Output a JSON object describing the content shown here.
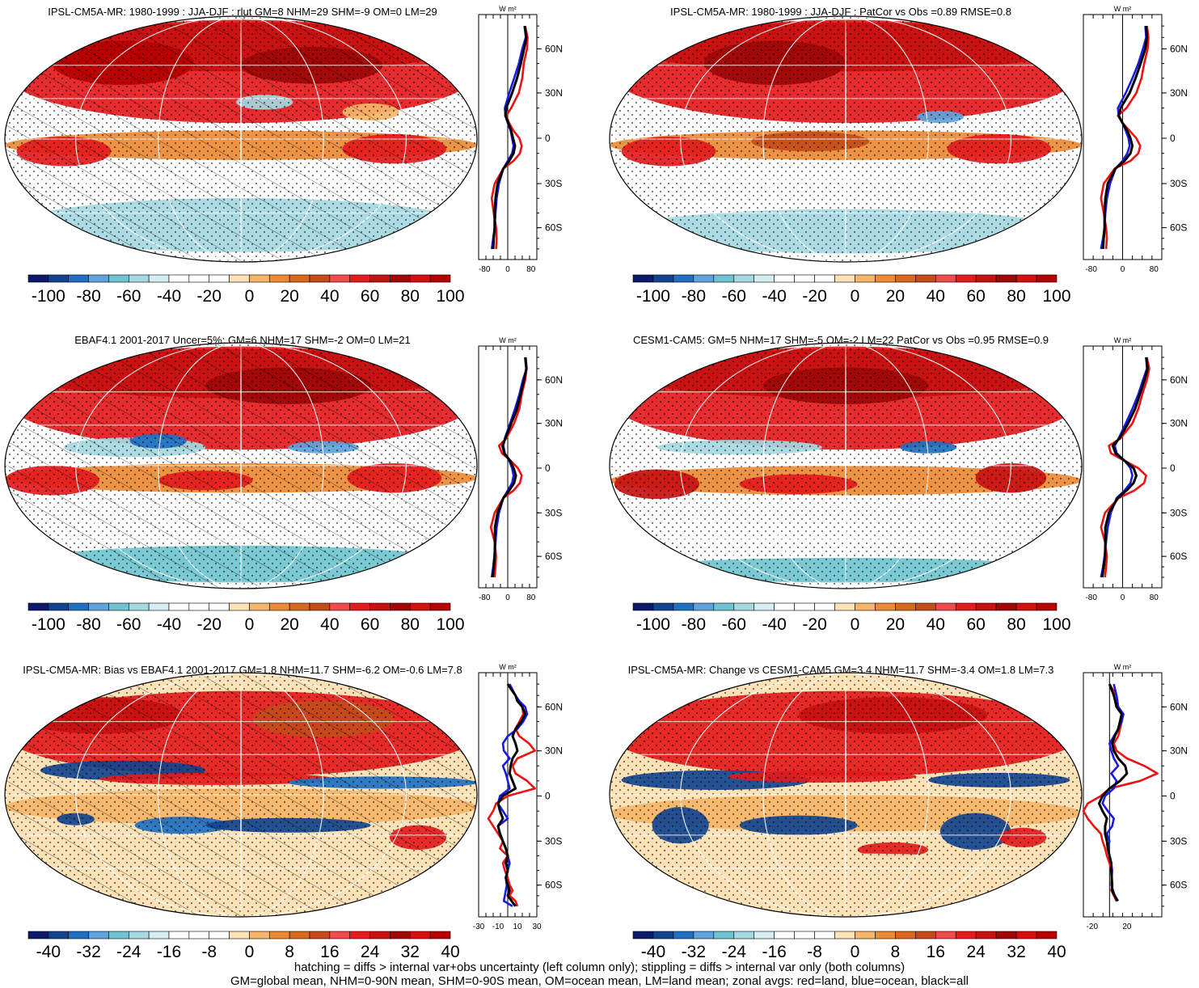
{
  "chart_data": [
    {
      "type": "map",
      "title": "IPSL-CM5A-MR: 1980-1999 : JJA-DJF : rlut GM=8 NHM=29 SHM=-9 OM=0 LM=29",
      "colorbar_ticks": [
        "-100",
        "-80",
        "-60",
        "-40",
        "-20",
        "0",
        "20",
        "40",
        "60",
        "80",
        "100"
      ],
      "colorbar_range": [
        -100,
        100
      ],
      "zonal": {
        "unit_label": "W m²",
        "lat_ticks": [
          "60N",
          "30N",
          "0",
          "30S",
          "60S"
        ],
        "x_ticks": [
          "-80",
          "0",
          "80"
        ],
        "xlim": [
          -100,
          100
        ],
        "lat": [
          80,
          70,
          60,
          50,
          40,
          30,
          20,
          15,
          10,
          5,
          0,
          -5,
          -10,
          -15,
          -20,
          -30,
          -40,
          -50,
          -60,
          -70,
          -80
        ],
        "series": [
          {
            "name": "land",
            "color": "#ee1111",
            "values": [
              60,
              68,
              66,
              55,
              50,
              38,
              12,
              -5,
              5,
              20,
              40,
              48,
              42,
              20,
              -15,
              -45,
              -55,
              -48,
              -40,
              -38,
              -40
            ]
          },
          {
            "name": "ocean",
            "color": "#1a1ae6",
            "values": [
              58,
              62,
              50,
              38,
              22,
              5,
              -10,
              -8,
              0,
              10,
              15,
              20,
              15,
              0,
              -15,
              -30,
              -38,
              -42,
              -45,
              -50,
              -55
            ]
          },
          {
            "name": "all",
            "color": "#000000",
            "values": [
              58,
              64,
              56,
              45,
              32,
              15,
              -5,
              -8,
              2,
              12,
              18,
              25,
              20,
              5,
              -15,
              -35,
              -42,
              -45,
              -45,
              -48,
              -50
            ]
          }
        ]
      }
    },
    {
      "type": "map",
      "title": "IPSL-CM5A-MR: 1980-1999 : JJA-DJF : PatCor vs Obs =0.89 RMSE=0.8",
      "colorbar_ticks": [
        "-100",
        "-80",
        "-60",
        "-40",
        "-20",
        "0",
        "20",
        "40",
        "60",
        "80",
        "100"
      ],
      "colorbar_range": [
        -100,
        100
      ],
      "zonal": {
        "unit_label": "W m²",
        "lat_ticks": [
          "60N",
          "30N",
          "0",
          "30S",
          "60S"
        ],
        "x_ticks": [
          "-80",
          "0",
          "80"
        ],
        "xlim": [
          -100,
          100
        ],
        "lat": [
          80,
          70,
          60,
          50,
          40,
          30,
          20,
          15,
          10,
          5,
          0,
          -5,
          -10,
          -15,
          -20,
          -30,
          -40,
          -50,
          -60,
          -70,
          -80
        ],
        "series": [
          {
            "name": "land",
            "color": "#ee1111",
            "values": [
              62,
              66,
              64,
              55,
              48,
              35,
              10,
              -12,
              0,
              18,
              35,
              45,
              40,
              20,
              -20,
              -48,
              -55,
              -48,
              -42,
              -40,
              -42
            ]
          },
          {
            "name": "ocean",
            "color": "#1a1ae6",
            "values": [
              58,
              60,
              52,
              40,
              25,
              8,
              -12,
              -10,
              0,
              8,
              15,
              18,
              12,
              0,
              -18,
              -32,
              -40,
              -44,
              -46,
              -50,
              -55
            ]
          },
          {
            "name": "all",
            "color": "#000000",
            "values": [
              60,
              62,
              58,
              46,
              33,
              18,
              -5,
              -10,
              0,
              12,
              20,
              25,
              20,
              5,
              -18,
              -38,
              -44,
              -46,
              -46,
              -48,
              -50
            ]
          }
        ]
      }
    },
    {
      "type": "map",
      "title": "EBAF4.1 2001-2017 Uncer=5%: GM=6 NHM=17 SHM=-2 OM=0 LM=21",
      "colorbar_ticks": [
        "-100",
        "-80",
        "-60",
        "-40",
        "-20",
        "0",
        "20",
        "40",
        "60",
        "80",
        "100"
      ],
      "colorbar_range": [
        -100,
        100
      ],
      "zonal": {
        "unit_label": "W m²",
        "lat_ticks": [
          "60N",
          "30N",
          "0",
          "30S",
          "60S"
        ],
        "x_ticks": [
          "-80",
          "0",
          "80"
        ],
        "xlim": [
          -100,
          100
        ],
        "lat": [
          80,
          70,
          60,
          50,
          40,
          30,
          20,
          15,
          10,
          5,
          0,
          -5,
          -10,
          -15,
          -20,
          -30,
          -40,
          -50,
          -60,
          -70,
          -80
        ],
        "series": [
          {
            "name": "land",
            "color": "#ee1111",
            "values": [
              60,
              65,
              60,
              48,
              40,
              22,
              -5,
              -30,
              -20,
              10,
              35,
              48,
              42,
              20,
              -15,
              -45,
              -58,
              -45,
              -40,
              -42,
              -45
            ]
          },
          {
            "name": "ocean",
            "color": "#1a1ae6",
            "values": [
              62,
              65,
              52,
              40,
              25,
              8,
              -10,
              -15,
              -10,
              5,
              15,
              20,
              15,
              0,
              -15,
              -30,
              -38,
              -42,
              -46,
              -50,
              -55
            ]
          },
          {
            "name": "all",
            "color": "#000000",
            "values": [
              60,
              64,
              56,
              44,
              32,
              12,
              -8,
              -18,
              -12,
              8,
              20,
              28,
              22,
              5,
              -15,
              -35,
              -44,
              -44,
              -45,
              -48,
              -52
            ]
          }
        ]
      }
    },
    {
      "type": "map",
      "title": "CESM1-CAM5: GM=5 NHM=17 SHM=-5 OM=-2 LM=22 PatCor vs Obs =0.95 RMSE=0.9",
      "colorbar_ticks": [
        "-100",
        "-80",
        "-60",
        "-40",
        "-20",
        "0",
        "20",
        "40",
        "60",
        "80",
        "100"
      ],
      "colorbar_range": [
        -100,
        100
      ],
      "zonal": {
        "unit_label": "W m²",
        "lat_ticks": [
          "60N",
          "30N",
          "0",
          "30S",
          "60S"
        ],
        "x_ticks": [
          "-80",
          "0",
          "80"
        ],
        "xlim": [
          -100,
          100
        ],
        "lat": [
          80,
          70,
          60,
          50,
          40,
          30,
          20,
          15,
          10,
          5,
          0,
          -5,
          -10,
          -15,
          -20,
          -30,
          -40,
          -50,
          -60,
          -70,
          -80
        ],
        "series": [
          {
            "name": "land",
            "color": "#ee1111",
            "values": [
              62,
              68,
              62,
              50,
              40,
              25,
              -5,
              -35,
              -30,
              5,
              40,
              60,
              55,
              30,
              -10,
              -45,
              -55,
              -45,
              -40,
              -42,
              -45
            ]
          },
          {
            "name": "ocean",
            "color": "#1a1ae6",
            "values": [
              60,
              62,
              52,
              40,
              25,
              8,
              -10,
              -20,
              -15,
              5,
              20,
              25,
              20,
              5,
              -15,
              -30,
              -38,
              -42,
              -46,
              -50,
              -55
            ]
          },
          {
            "name": "all",
            "color": "#000000",
            "values": [
              60,
              64,
              56,
              44,
              32,
              14,
              -8,
              -25,
              -18,
              5,
              28,
              35,
              28,
              10,
              -12,
              -35,
              -44,
              -44,
              -45,
              -48,
              -52
            ]
          }
        ]
      }
    },
    {
      "type": "map",
      "title": "IPSL-CM5A-MR: Bias vs EBAF4.1 2001-2017 GM=1.8 NHM=11.7 SHM=-6.2 OM=-0.6 LM=7.8",
      "colorbar_ticks": [
        "-40",
        "-32",
        "-24",
        "-16",
        "-8",
        "0",
        "8",
        "16",
        "24",
        "32",
        "40"
      ],
      "colorbar_range": [
        -40,
        40
      ],
      "zonal": {
        "unit_label": "W m²",
        "lat_ticks": [
          "60N",
          "30N",
          "0",
          "30S",
          "60S"
        ],
        "x_ticks": [
          "-30",
          "-10",
          "10",
          "30"
        ],
        "xlim": [
          -30,
          30
        ],
        "lat": [
          80,
          70,
          65,
          60,
          55,
          50,
          45,
          40,
          35,
          30,
          25,
          20,
          15,
          10,
          5,
          0,
          -5,
          -10,
          -15,
          -20,
          -25,
          -30,
          -35,
          -40,
          -45,
          -50,
          -55,
          -60,
          -65,
          -70,
          -75,
          -80
        ],
        "series": [
          {
            "name": "land",
            "color": "#ee1111",
            "values": [
              0,
              8,
              10,
              15,
              16,
              12,
              8,
              12,
              22,
              28,
              10,
              5,
              8,
              20,
              28,
              0,
              -12,
              -15,
              -20,
              -15,
              -10,
              -5,
              -8,
              0,
              -5,
              -3,
              0,
              2,
              5,
              2,
              8,
              10
            ]
          },
          {
            "name": "ocean",
            "color": "#1a1ae6",
            "values": [
              2,
              8,
              12,
              18,
              20,
              16,
              10,
              0,
              -5,
              -4,
              2,
              -5,
              -2,
              0,
              2,
              -8,
              -10,
              -5,
              0,
              -10,
              -8,
              -5,
              -2,
              0,
              2,
              0,
              -2,
              -1,
              -2,
              -3,
              -4,
              5
            ]
          },
          {
            "name": "all",
            "color": "#000000",
            "values": [
              0,
              8,
              10,
              15,
              18,
              14,
              8,
              5,
              8,
              10,
              5,
              3,
              2,
              5,
              8,
              -5,
              -10,
              -8,
              -5,
              -10,
              -8,
              -5,
              -2,
              0,
              -2,
              0,
              -2,
              0,
              2,
              0,
              4,
              8
            ]
          }
        ]
      }
    },
    {
      "type": "map",
      "title": "IPSL-CM5A-MR: Change vs CESM1-CAM5 GM=3.4 NHM=11.7 SHM=-3.4 OM=1.8 LM=7.3",
      "colorbar_ticks": [
        "-40",
        "-32",
        "-24",
        "-16",
        "-8",
        "0",
        "8",
        "16",
        "24",
        "32",
        "40"
      ],
      "colorbar_range": [
        -40,
        40
      ],
      "zonal": {
        "unit_label": "W m²",
        "lat_ticks": [
          "60N",
          "30N",
          "0",
          "30S",
          "60S"
        ],
        "x_ticks": [
          "-20",
          "20"
        ],
        "xlim": [
          -30,
          60
        ],
        "lat": [
          80,
          70,
          60,
          55,
          50,
          45,
          40,
          35,
          30,
          25,
          20,
          15,
          10,
          5,
          0,
          -5,
          -10,
          -15,
          -20,
          -25,
          -30,
          -35,
          -40,
          -45,
          -50,
          -60,
          -65,
          -70,
          -75
        ],
        "series": [
          {
            "name": "land",
            "color": "#ee1111",
            "values": [
              0,
              8,
              10,
              15,
              14,
              12,
              10,
              5,
              8,
              20,
              40,
              55,
              35,
              0,
              -10,
              -25,
              -30,
              -25,
              -18,
              -10,
              -8,
              -5,
              -3,
              0,
              2,
              3,
              2,
              5,
              8
            ]
          },
          {
            "name": "ocean",
            "color": "#1a1ae6",
            "values": [
              5,
              8,
              10,
              16,
              14,
              10,
              5,
              0,
              2,
              5,
              10,
              2,
              8,
              5,
              -5,
              -8,
              -2,
              5,
              3,
              -3,
              0,
              -2,
              0,
              2,
              3,
              2,
              4,
              6,
              10
            ]
          },
          {
            "name": "all",
            "color": "#000000",
            "values": [
              0,
              5,
              8,
              14,
              12,
              10,
              6,
              3,
              5,
              10,
              18,
              20,
              12,
              0,
              -8,
              -12,
              -8,
              -3,
              -5,
              -5,
              -3,
              -2,
              0,
              2,
              2,
              3,
              3,
              6,
              9
            ]
          }
        ]
      }
    }
  ],
  "footer": {
    "line1": "hatching = diffs > internal var+obs uncertainty (left column only); stippling = diffs > internal var only (both columns)",
    "line2": "GM=global mean, NHM=0-90N mean, SHM=0-90S mean, OM=ocean mean, LM=land mean; zonal avgs: red=land, blue=ocean, black=all"
  },
  "colors": {
    "palette": [
      "#0d1a6b",
      "#11448f",
      "#1f70c1",
      "#5ea3dc",
      "#6fc4cf",
      "#a6d8e2",
      "#d5eef2",
      "#ffffff",
      "#ffffff",
      "#ffffff",
      "#fce2b6",
      "#f6b56a",
      "#ec8a36",
      "#d7681e",
      "#c44c1a",
      "#f14b4b",
      "#e41a1c",
      "#c81010",
      "#a00808",
      "#d80f0f",
      "#b80000",
      "#2060a0"
    ],
    "land": "#ee1111",
    "ocean": "#1a1ae6",
    "all": "#000000"
  }
}
